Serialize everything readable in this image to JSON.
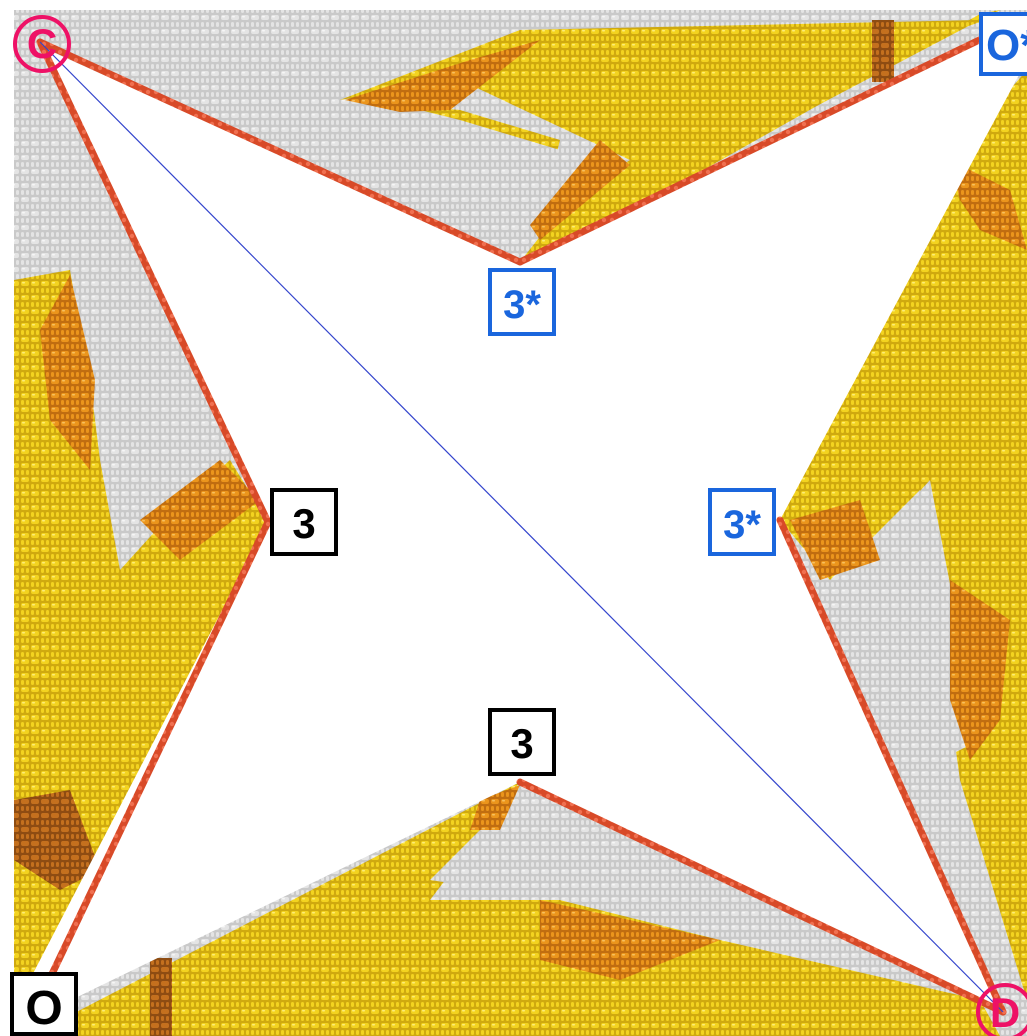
{
  "colors": {
    "background": "#ffffff",
    "bead_light": "#dadada",
    "bead_light_edge": "#b8b8b8",
    "bead_yellow": "#f2d21e",
    "bead_yellow_edge": "#c9a80c",
    "bead_orange": "#e8901a",
    "bead_olive": "#a89a2c",
    "bead_brown": "#c46a1a",
    "edge_line": "#d84a28",
    "edge_bead": "#e0502e",
    "diagonal": "#3344cc",
    "label_black": "#000000",
    "label_blue": "#1a66dd",
    "label_pink": "#ee1166"
  },
  "corner_labels": {
    "top_left": "C",
    "top_right": "O*",
    "bottom_left": "O",
    "bottom_right": "D"
  },
  "point_labels": {
    "top": "3*",
    "right": "3*",
    "left": "3",
    "bottom": "3"
  }
}
